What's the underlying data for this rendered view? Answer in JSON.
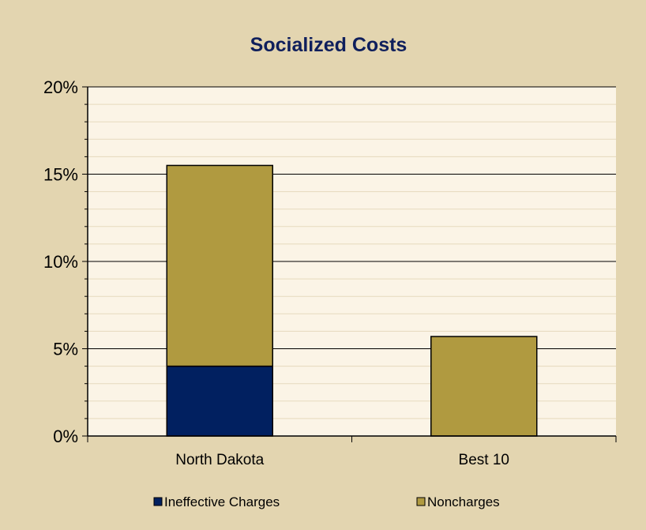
{
  "chart_data": {
    "type": "bar",
    "stacked": true,
    "title": "Socialized Costs",
    "xlabel": "",
    "ylabel": "",
    "categories": [
      "North Dakota",
      "Best 10"
    ],
    "series": [
      {
        "name": "Ineffective Charges",
        "values": [
          4.0,
          0.0
        ],
        "color": "#012060"
      },
      {
        "name": "Noncharges",
        "values": [
          11.5,
          5.7
        ],
        "color": "#b09a40"
      }
    ],
    "ylim": [
      0,
      20
    ],
    "yticks": [
      0,
      5,
      10,
      15,
      20
    ],
    "ytick_labels": [
      "0%",
      "5%",
      "10%",
      "15%",
      "20%"
    ],
    "grid": true,
    "legend_position": "bottom",
    "colors": {
      "background": "#e3d5b0",
      "plot_area": "#fbf4e6",
      "gridline": "#000000"
    }
  }
}
